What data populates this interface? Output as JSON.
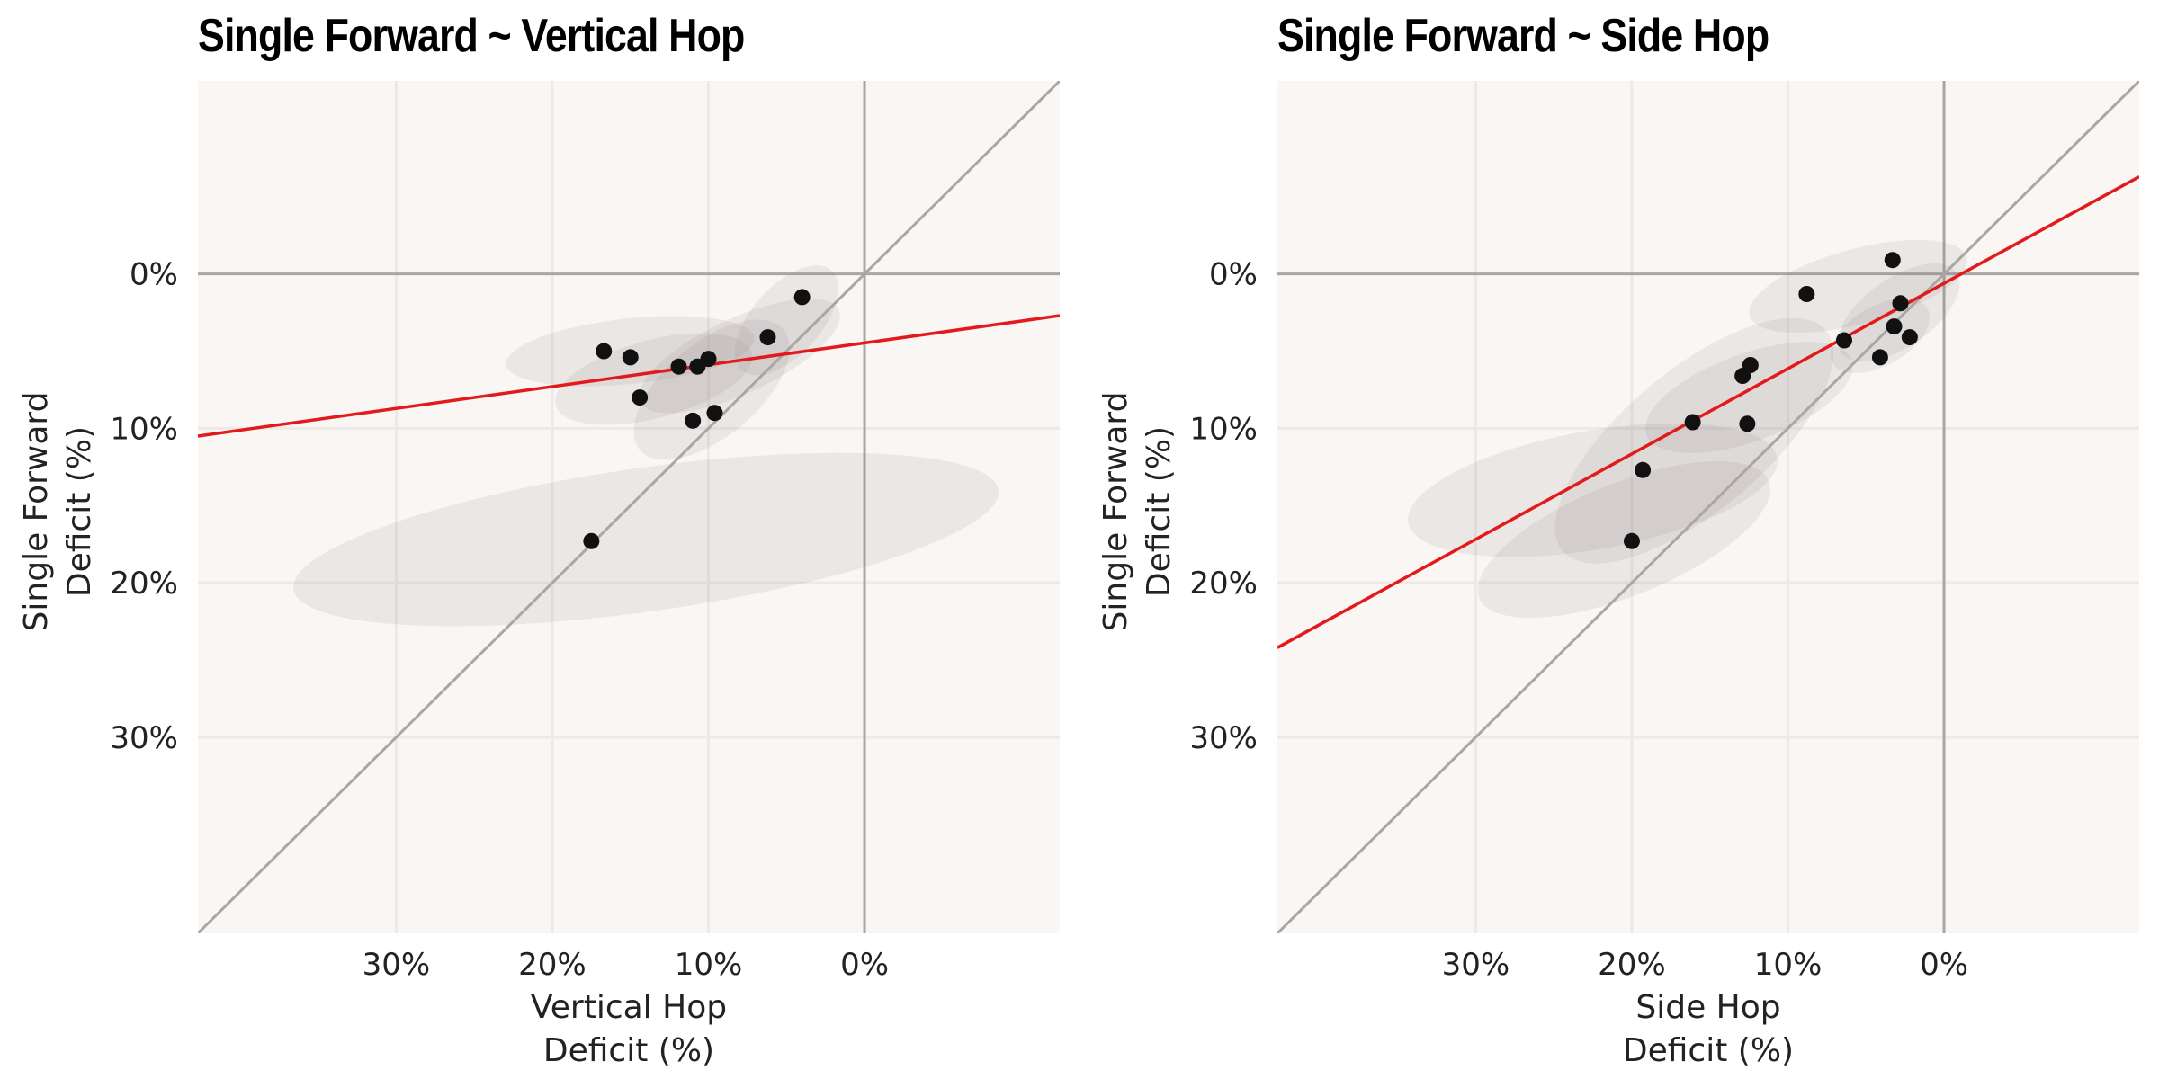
{
  "chart_data": [
    {
      "type": "scatter",
      "title": "Single Forward ~ Vertical Hop",
      "xlabel": [
        "Vertical Hop",
        "Deficit (%)"
      ],
      "ylabel": [
        "Single Forward",
        "Deficit (%)"
      ],
      "x_ticks": [
        "30%",
        "20%",
        "10%",
        "0%"
      ],
      "x_tick_values": [
        30,
        20,
        10,
        0
      ],
      "y_ticks": [
        "0%",
        "10%",
        "20%",
        "30%"
      ],
      "y_tick_values": [
        0,
        10,
        20,
        30
      ],
      "xlim": [
        42.7,
        -12.5
      ],
      "ylim": [
        -12.5,
        42.7
      ],
      "axes_inverted": true,
      "grid": true,
      "identity_line": true,
      "points": [
        {
          "x": 16.7,
          "y": 5.0
        },
        {
          "x": 15.0,
          "y": 5.4
        },
        {
          "x": 14.4,
          "y": 8.0
        },
        {
          "x": 11.9,
          "y": 6.0
        },
        {
          "x": 10.7,
          "y": 6.0
        },
        {
          "x": 10.0,
          "y": 5.5
        },
        {
          "x": 11.0,
          "y": 9.5
        },
        {
          "x": 9.6,
          "y": 9.0
        },
        {
          "x": 6.2,
          "y": 4.1
        },
        {
          "x": 4.0,
          "y": 1.5
        },
        {
          "x": 17.5,
          "y": 17.3
        }
      ],
      "ellipses": [
        {
          "cx": 15.0,
          "cy": 5.0,
          "rx": 8.0,
          "ry": 2.1,
          "angle": -6
        },
        {
          "cx": 13.5,
          "cy": 6.8,
          "rx": 6.5,
          "ry": 2.5,
          "angle": -15
        },
        {
          "cx": 9.8,
          "cy": 7.5,
          "rx": 6.0,
          "ry": 3.0,
          "angle": -40
        },
        {
          "cx": 8.0,
          "cy": 5.3,
          "rx": 7.0,
          "ry": 2.4,
          "angle": -25
        },
        {
          "cx": 5.0,
          "cy": 3.0,
          "rx": 4.3,
          "ry": 2.2,
          "angle": -48
        },
        {
          "cx": 14.0,
          "cy": 17.2,
          "rx": 22.8,
          "ry": 4.6,
          "angle": -8
        }
      ],
      "fit_line": {
        "color": "#e31a1c",
        "x": [
          42.7,
          -12.5
        ],
        "y": [
          10.5,
          2.7
        ]
      },
      "colors": {
        "background": "#faf6f4",
        "grid": "#ede9e7",
        "zero_line": "#a9a6a4",
        "point": "#111111",
        "ellipse": "#8c8580"
      }
    },
    {
      "type": "scatter",
      "title": "Single Forward ~ Side Hop",
      "xlabel": [
        "Side Hop",
        "Deficit (%)"
      ],
      "ylabel": [
        "Single Forward",
        "Deficit (%)"
      ],
      "x_ticks": [
        "30%",
        "20%",
        "10%",
        "0%"
      ],
      "x_tick_values": [
        30,
        20,
        10,
        0
      ],
      "y_ticks": [
        "0%",
        "10%",
        "20%",
        "30%"
      ],
      "y_tick_values": [
        0,
        10,
        20,
        30
      ],
      "xlim": [
        42.7,
        -12.5
      ],
      "ylim": [
        -12.5,
        42.7
      ],
      "axes_inverted": true,
      "grid": true,
      "identity_line": true,
      "points": [
        {
          "x": 3.3,
          "y": -0.9
        },
        {
          "x": 8.8,
          "y": 1.3
        },
        {
          "x": 2.8,
          "y": 1.9
        },
        {
          "x": 3.2,
          "y": 3.4
        },
        {
          "x": 6.4,
          "y": 4.3
        },
        {
          "x": 2.2,
          "y": 4.1
        },
        {
          "x": 4.1,
          "y": 5.4
        },
        {
          "x": 12.4,
          "y": 5.9
        },
        {
          "x": 12.9,
          "y": 6.6
        },
        {
          "x": 16.1,
          "y": 9.6
        },
        {
          "x": 12.6,
          "y": 9.7
        },
        {
          "x": 19.3,
          "y": 12.7
        },
        {
          "x": 20.0,
          "y": 17.3
        }
      ],
      "ellipses": [
        {
          "cx": 5.5,
          "cy": 0.8,
          "rx": 7.2,
          "ry": 2.4,
          "angle": -15
        },
        {
          "cx": 2.9,
          "cy": 2.5,
          "rx": 4.5,
          "ry": 2.2,
          "angle": -35
        },
        {
          "cx": 4.1,
          "cy": 4.0,
          "rx": 3.5,
          "ry": 1.9,
          "angle": -30
        },
        {
          "cx": 12.5,
          "cy": 8.0,
          "rx": 7.0,
          "ry": 2.8,
          "angle": -20
        },
        {
          "cx": 16.0,
          "cy": 10.8,
          "rx": 11.0,
          "ry": 4.5,
          "angle": -40
        },
        {
          "cx": 22.5,
          "cy": 14.0,
          "rx": 12.0,
          "ry": 3.8,
          "angle": -10
        },
        {
          "cx": 20.5,
          "cy": 17.2,
          "rx": 10.0,
          "ry": 3.6,
          "angle": -22
        }
      ],
      "fit_line": {
        "color": "#e31a1c",
        "x": [
          42.7,
          -12.5
        ],
        "y": [
          24.2,
          -6.3
        ]
      },
      "colors": {
        "background": "#faf6f4",
        "grid": "#ede9e7",
        "zero_line": "#a9a6a4",
        "point": "#111111",
        "ellipse": "#8c8580"
      }
    }
  ]
}
